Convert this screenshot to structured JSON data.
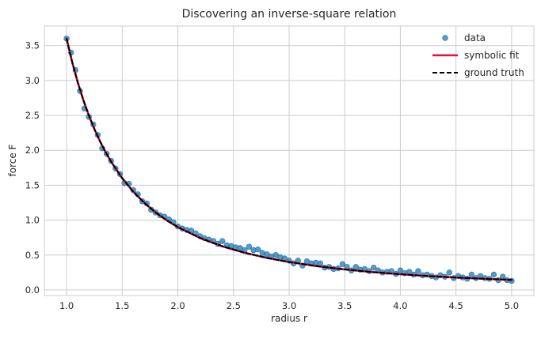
{
  "chart_data": {
    "type": "scatter",
    "title": "Discovering an inverse-square relation",
    "xlabel": "radius r",
    "ylabel": "force F",
    "xlim": [
      0.8,
      5.2
    ],
    "ylim": [
      -0.08,
      3.78
    ],
    "xticks": [
      1.0,
      1.5,
      2.0,
      2.5,
      3.0,
      3.5,
      4.0,
      4.5,
      5.0
    ],
    "xtick_labels": [
      "1.0",
      "1.5",
      "2.0",
      "2.5",
      "3.0",
      "3.5",
      "4.0",
      "4.5",
      "5.0"
    ],
    "yticks": [
      0.0,
      0.5,
      1.0,
      1.5,
      2.0,
      2.5,
      3.0,
      3.5
    ],
    "ytick_labels": [
      "0.0",
      "0.5",
      "1.0",
      "1.5",
      "2.0",
      "2.5",
      "3.0",
      "3.5"
    ],
    "grid": true,
    "legend_position": "top-right",
    "series": [
      {
        "name": "data",
        "kind": "scatter",
        "color": "#1f77b4",
        "x": [
          1.0,
          1.04,
          1.08,
          1.12,
          1.16,
          1.2,
          1.24,
          1.28,
          1.32,
          1.36,
          1.4,
          1.44,
          1.48,
          1.52,
          1.56,
          1.6,
          1.64,
          1.68,
          1.72,
          1.76,
          1.8,
          1.84,
          1.88,
          1.92,
          1.96,
          2.0,
          2.04,
          2.08,
          2.12,
          2.16,
          2.2,
          2.24,
          2.28,
          2.32,
          2.36,
          2.4,
          2.44,
          2.48,
          2.52,
          2.56,
          2.6,
          2.64,
          2.68,
          2.72,
          2.76,
          2.8,
          2.84,
          2.88,
          2.92,
          2.96,
          3.0,
          3.04,
          3.08,
          3.12,
          3.16,
          3.2,
          3.24,
          3.28,
          3.32,
          3.36,
          3.4,
          3.44,
          3.48,
          3.52,
          3.56,
          3.6,
          3.64,
          3.68,
          3.72,
          3.76,
          3.8,
          3.84,
          3.88,
          3.92,
          3.96,
          4.0,
          4.04,
          4.08,
          4.12,
          4.16,
          4.2,
          4.24,
          4.28,
          4.32,
          4.36,
          4.4,
          4.44,
          4.48,
          4.52,
          4.56,
          4.6,
          4.64,
          4.68,
          4.72,
          4.76,
          4.8,
          4.84,
          4.88,
          4.92,
          4.96,
          5.0
        ],
        "y": [
          3.6,
          3.4,
          3.15,
          2.85,
          2.6,
          2.48,
          2.37,
          2.22,
          2.03,
          1.95,
          1.85,
          1.74,
          1.66,
          1.53,
          1.52,
          1.43,
          1.37,
          1.27,
          1.24,
          1.15,
          1.11,
          1.07,
          1.05,
          1.01,
          0.97,
          0.91,
          0.88,
          0.86,
          0.85,
          0.81,
          0.77,
          0.74,
          0.72,
          0.7,
          0.66,
          0.7,
          0.64,
          0.63,
          0.61,
          0.6,
          0.57,
          0.62,
          0.57,
          0.58,
          0.53,
          0.51,
          0.48,
          0.5,
          0.47,
          0.45,
          0.42,
          0.38,
          0.42,
          0.35,
          0.41,
          0.38,
          0.39,
          0.38,
          0.32,
          0.33,
          0.3,
          0.31,
          0.37,
          0.33,
          0.28,
          0.33,
          0.29,
          0.3,
          0.27,
          0.32,
          0.28,
          0.25,
          0.26,
          0.27,
          0.23,
          0.28,
          0.24,
          0.26,
          0.22,
          0.27,
          0.21,
          0.22,
          0.2,
          0.18,
          0.21,
          0.19,
          0.25,
          0.17,
          0.2,
          0.18,
          0.16,
          0.22,
          0.17,
          0.2,
          0.17,
          0.16,
          0.22,
          0.14,
          0.19,
          0.14,
          0.13
        ]
      },
      {
        "name": "symbolic fit",
        "kind": "line",
        "color": "#dc143c",
        "x": [
          1.0,
          1.05,
          1.1,
          1.15,
          1.2,
          1.25,
          1.3,
          1.35,
          1.4,
          1.5,
          1.6,
          1.7,
          1.8,
          1.9,
          2.0,
          2.2,
          2.4,
          2.6,
          2.8,
          3.0,
          3.25,
          3.5,
          3.75,
          4.0,
          4.25,
          4.5,
          4.75,
          5.0
        ],
        "y": [
          3.6,
          3.265,
          2.975,
          2.722,
          2.5,
          2.304,
          2.13,
          1.975,
          1.837,
          1.6,
          1.406,
          1.246,
          1.111,
          0.997,
          0.9,
          0.744,
          0.625,
          0.533,
          0.459,
          0.4,
          0.341,
          0.294,
          0.256,
          0.225,
          0.199,
          0.178,
          0.16,
          0.144
        ]
      },
      {
        "name": "ground truth",
        "kind": "dashed-line",
        "color": "#000000",
        "x": [
          1.0,
          1.05,
          1.1,
          1.15,
          1.2,
          1.25,
          1.3,
          1.35,
          1.4,
          1.5,
          1.6,
          1.7,
          1.8,
          1.9,
          2.0,
          2.2,
          2.4,
          2.6,
          2.8,
          3.0,
          3.25,
          3.5,
          3.75,
          4.0,
          4.25,
          4.5,
          4.75,
          5.0
        ],
        "y": [
          3.6,
          3.265,
          2.975,
          2.722,
          2.5,
          2.304,
          2.13,
          1.975,
          1.837,
          1.6,
          1.406,
          1.246,
          1.111,
          0.997,
          0.9,
          0.744,
          0.625,
          0.533,
          0.459,
          0.4,
          0.341,
          0.294,
          0.256,
          0.225,
          0.199,
          0.178,
          0.16,
          0.144
        ]
      }
    ]
  }
}
